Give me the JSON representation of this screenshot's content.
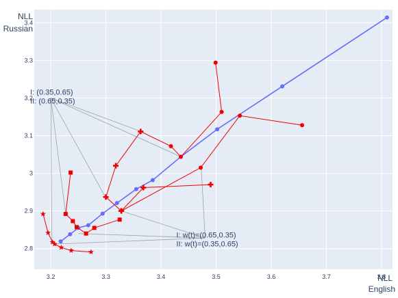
{
  "chart_data": {
    "type": "scatter",
    "x_axis": {
      "label_lines": [
        "NLL",
        "English"
      ],
      "range": [
        3.17,
        3.82
      ],
      "ticks": [
        3.2,
        3.3,
        3.4,
        3.5,
        3.6,
        3.7,
        3.8
      ],
      "tick_labels": [
        "3.2",
        "3.3",
        "3.4",
        "3.5",
        "3.6",
        "3.7",
        "3.8"
      ]
    },
    "y_axis": {
      "label_lines": [
        "NLL",
        "Russian"
      ],
      "range": [
        2.745,
        3.435
      ],
      "ticks": [
        2.8,
        2.9,
        3.0,
        3.1,
        3.2,
        3.3,
        3.4
      ],
      "tick_labels": [
        "2.8",
        "2.9",
        "3",
        "3.1",
        "3.2",
        "3.3",
        "3.4"
      ]
    },
    "grid": true,
    "legend": "none",
    "colors": {
      "background": "#e5ecf6",
      "grid": "#ffffff",
      "blue": "#636efa",
      "red": "#ef0000",
      "callout": "#9aa3ad"
    },
    "series": [
      {
        "marker": "circle",
        "color": "#636efa",
        "mode": "lines+markers",
        "points": [
          [
            3.218,
            2.819
          ],
          [
            3.235,
            2.838
          ],
          [
            3.25,
            2.855
          ],
          [
            3.268,
            2.862
          ],
          [
            3.294,
            2.893
          ],
          [
            3.32,
            2.921
          ],
          [
            3.355,
            2.958
          ],
          [
            3.385,
            2.982
          ],
          [
            3.436,
            3.044
          ],
          [
            3.502,
            3.117
          ],
          [
            3.62,
            3.231
          ],
          [
            3.81,
            3.414
          ]
        ]
      },
      {
        "marker": "circle",
        "color": "#ef0000",
        "mode": "lines+markers",
        "points": [
          [
            3.499,
            3.294
          ],
          [
            3.51,
            3.163
          ],
          [
            3.436,
            3.044
          ],
          [
            3.418,
            3.072
          ],
          [
            3.363,
            3.111
          ],
          [
            3.318,
            3.02
          ],
          [
            3.3,
            2.937
          ],
          [
            3.328,
            2.9
          ],
          [
            3.472,
            3.015
          ],
          [
            3.543,
            3.153
          ],
          [
            3.656,
            3.128
          ]
        ],
        "points_markers": [
          "circle",
          "circle",
          "circle",
          "circle",
          "plus",
          "plus",
          "plus",
          "plus",
          "circle",
          "circle",
          "circle"
        ]
      },
      {
        "marker": "plus",
        "color": "#ef0000",
        "mode": "lines+markers",
        "points": [
          [
            3.328,
            2.9
          ],
          [
            3.368,
            2.962
          ],
          [
            3.49,
            2.97
          ]
        ]
      },
      {
        "marker": "square",
        "color": "#ef0000",
        "mode": "lines+markers",
        "points": [
          [
            3.236,
            3.002
          ],
          [
            3.227,
            2.892
          ],
          [
            3.24,
            2.873
          ],
          [
            3.247,
            2.857
          ],
          [
            3.264,
            2.84
          ],
          [
            3.279,
            2.855
          ],
          [
            3.325,
            2.877
          ]
        ]
      },
      {
        "marker": "star",
        "color": "#ef0000",
        "mode": "lines+markers",
        "points": [
          [
            3.186,
            2.892
          ],
          [
            3.195,
            2.842
          ],
          [
            3.203,
            2.817
          ],
          [
            3.207,
            2.812
          ],
          [
            3.219,
            2.803
          ],
          [
            3.237,
            2.795
          ],
          [
            3.273,
            2.791
          ]
        ]
      }
    ],
    "annotations": [
      {
        "lines": [
          "I:  (0.35,0.65)",
          "II: (0.65,0.35)"
        ],
        "anchor": [
          3.2,
          3.2
        ],
        "targets": [
          [
            3.202,
            2.815
          ],
          [
            3.227,
            2.892
          ],
          [
            3.299,
            2.937
          ],
          [
            3.364,
            3.111
          ],
          [
            3.436,
            3.044
          ]
        ]
      },
      {
        "lines": [
          "I:  w(t)=(0.65,0.35)",
          "II: w(t)=(0.35,0.65)"
        ],
        "anchor": [
          3.48,
          2.828
        ],
        "targets": [
          [
            3.326,
            2.901
          ],
          [
            3.473,
            3.015
          ],
          [
            3.25,
            2.84
          ],
          [
            3.205,
            2.812
          ]
        ]
      }
    ]
  }
}
